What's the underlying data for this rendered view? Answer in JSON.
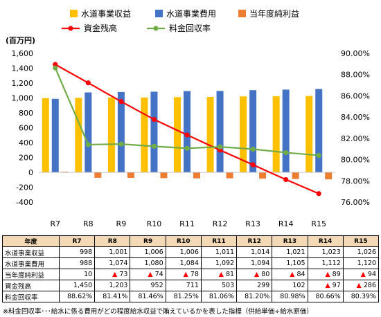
{
  "chart_data": {
    "type": "bar+line",
    "categories": [
      "R7",
      "R8",
      "R9",
      "R10",
      "R11",
      "R12",
      "R13",
      "R14",
      "R15"
    ],
    "y_left": {
      "unit_label": "(百万円)",
      "min": -400,
      "max": 1600,
      "step": 200,
      "ticks": [
        "1,600",
        "1,400",
        "1,200",
        "1,000",
        "800",
        "600",
        "400",
        "200",
        "0",
        "-200",
        "-400"
      ]
    },
    "y_right": {
      "min": 76,
      "max": 90,
      "step": 2,
      "ticks": [
        "90.00%",
        "88.00%",
        "86.00%",
        "84.00%",
        "82.00%",
        "80.00%",
        "78.00%",
        "76.00%"
      ]
    },
    "grid": false,
    "legend_position": "top",
    "series": [
      {
        "name": "水道事業収益",
        "kind": "bar",
        "axis": "left",
        "color": "#FFC000",
        "values": [
          998,
          1001,
          1006,
          1006,
          1011,
          1014,
          1021,
          1023,
          1026
        ]
      },
      {
        "name": "水道事業費用",
        "kind": "bar",
        "axis": "left",
        "color": "#4472C4",
        "values": [
          988,
          1074,
          1080,
          1084,
          1092,
          1094,
          1105,
          1112,
          1120
        ]
      },
      {
        "name": "当年度純利益",
        "kind": "bar",
        "axis": "left",
        "color": "#ED7D31",
        "values": [
          10,
          -73,
          -74,
          -78,
          -81,
          -80,
          -84,
          -89,
          -94
        ]
      },
      {
        "name": "資金残高",
        "kind": "line",
        "axis": "left",
        "color": "#FF0000",
        "values": [
          1450,
          1203,
          952,
          711,
          503,
          299,
          102,
          -97,
          -286
        ]
      },
      {
        "name": "料金回収率",
        "kind": "line",
        "axis": "right",
        "color": "#70AD47",
        "values": [
          88.62,
          81.41,
          81.46,
          81.25,
          81.06,
          81.2,
          80.98,
          80.66,
          80.39
        ]
      }
    ]
  },
  "table": {
    "header_label": "年度",
    "columns": [
      "R7",
      "R8",
      "R9",
      "R10",
      "R11",
      "R12",
      "R13",
      "R14",
      "R15"
    ],
    "rows": [
      {
        "label": "水道事業収益",
        "cells": [
          "998",
          "1,001",
          "1,006",
          "1,006",
          "1,011",
          "1,014",
          "1,021",
          "1,023",
          "1,026"
        ]
      },
      {
        "label": "水道事業費用",
        "cells": [
          "988",
          "1,074",
          "1,080",
          "1,084",
          "1,092",
          "1,094",
          "1,105",
          "1,112",
          "1,120"
        ]
      },
      {
        "label": "当年度純利益",
        "cells": [
          "10",
          "▲ 73",
          "▲ 74",
          "▲ 78",
          "▲ 81",
          "▲ 80",
          "▲ 84",
          "▲ 89",
          "▲ 94"
        ]
      },
      {
        "label": "資金残高",
        "cells": [
          "1,450",
          "1,203",
          "952",
          "711",
          "503",
          "299",
          "102",
          "▲ 97",
          "▲ 286"
        ]
      },
      {
        "label": "料金回収率",
        "cells": [
          "88.62%",
          "81.41%",
          "81.46%",
          "81.25%",
          "81.06%",
          "81.20%",
          "80.98%",
          "80.66%",
          "80.39%"
        ]
      }
    ]
  },
  "footnote": "※料金回収率･･･給水に係る費用がどの程度給水収益で賄えているかを表した指標（供給単価÷給水原価）"
}
